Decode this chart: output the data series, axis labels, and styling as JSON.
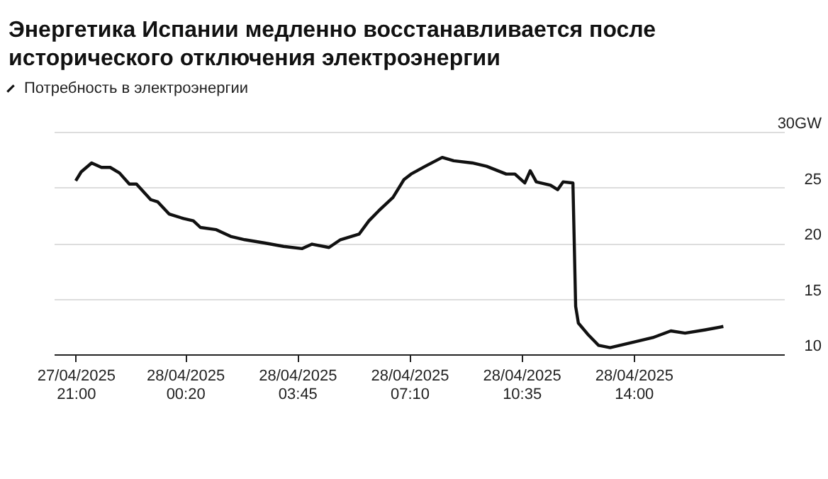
{
  "chart_data": {
    "type": "line",
    "title": "Энергетика Испании медленно восстанавливается после исторического отключения электроэнергии",
    "x": [
      "2025-04-27T21:00",
      "2025-04-27T21:10",
      "2025-04-27T21:29",
      "2025-04-27T21:47",
      "2025-04-27T22:03",
      "2025-04-27T22:20",
      "2025-04-27T22:38",
      "2025-04-27T22:51",
      "2025-04-27T23:17",
      "2025-04-27T23:30",
      "2025-04-27T23:51",
      "2025-04-28T00:17",
      "2025-04-28T00:35",
      "2025-04-28T00:48",
      "2025-04-28T01:17",
      "2025-04-28T01:43",
      "2025-04-28T02:09",
      "2025-04-28T02:46",
      "2025-04-28T03:20",
      "2025-04-28T03:54",
      "2025-04-28T04:12",
      "2025-04-28T04:43",
      "2025-04-28T05:04",
      "2025-04-28T05:38",
      "2025-04-28T05:56",
      "2025-04-28T06:14",
      "2025-04-28T06:40",
      "2025-04-28T07:00",
      "2025-04-28T07:13",
      "2025-04-28T07:39",
      "2025-04-28T08:10",
      "2025-04-28T08:31",
      "2025-04-28T09:05",
      "2025-04-28T09:31",
      "2025-04-28T10:07",
      "2025-04-28T10:23",
      "2025-04-28T10:41",
      "2025-04-28T10:51",
      "2025-04-28T11:02",
      "2025-04-28T11:28",
      "2025-04-28T11:41",
      "2025-04-28T11:51",
      "2025-04-28T12:09",
      "2025-04-28T12:14",
      "2025-04-28T12:19",
      "2025-04-28T12:38",
      "2025-04-28T12:56",
      "2025-04-28T13:17",
      "2025-04-28T14:01",
      "2025-04-28T14:35",
      "2025-04-28T15:08",
      "2025-04-28T15:34",
      "2025-04-28T16:11",
      "2025-04-28T16:44"
    ],
    "series": [
      {
        "name": "Потребность в электроэнергии",
        "color": "#111111",
        "values": [
          25.6,
          26.4,
          27.2,
          26.8,
          26.8,
          26.3,
          25.3,
          25.3,
          23.9,
          23.7,
          22.6,
          22.2,
          22.0,
          21.4,
          21.2,
          20.6,
          20.3,
          20.0,
          19.7,
          19.5,
          19.9,
          19.6,
          20.3,
          20.8,
          22.0,
          22.9,
          24.1,
          25.7,
          26.2,
          26.9,
          27.7,
          27.4,
          27.2,
          26.9,
          26.2,
          26.2,
          25.4,
          26.5,
          25.5,
          25.2,
          24.8,
          25.5,
          25.4,
          14.3,
          12.8,
          11.7,
          10.8,
          10.6,
          11.1,
          11.5,
          12.1,
          11.9,
          12.2,
          12.5
        ]
      }
    ],
    "xlim": [
      "2025-04-27T20:20",
      "2025-04-28T18:35"
    ],
    "xticks": [
      {
        "value": "2025-04-27T21:00",
        "label": "27/04/2025 21:00"
      },
      {
        "value": "2025-04-28T00:20",
        "label": "28/04/2025 00:20"
      },
      {
        "value": "2025-04-28T03:45",
        "label": "28/04/2025 03:45"
      },
      {
        "value": "2025-04-28T07:10",
        "label": "28/04/2025 07:10"
      },
      {
        "value": "2025-04-28T10:35",
        "label": "28/04/2025 10:35"
      },
      {
        "value": "2025-04-28T14:00",
        "label": "28/04/2025 14:00"
      }
    ],
    "ylim": [
      10,
      30
    ],
    "yticks": [
      10,
      15,
      20,
      25,
      {
        "value": 30,
        "label": "30GW"
      }
    ],
    "grid": "y",
    "legend": "top left",
    "line_style": "solid",
    "marker": "none"
  }
}
